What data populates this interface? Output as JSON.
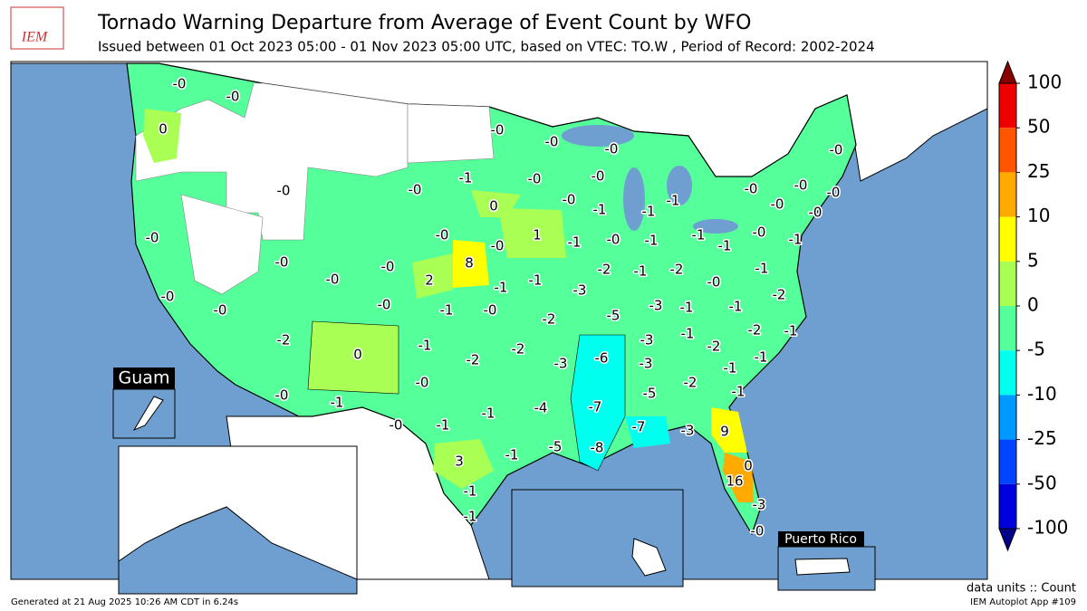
{
  "header": {
    "logo": "IEM",
    "title": "Tornado Warning Departure from Average of Event Count by WFO",
    "subtitle": "Issued between 01 Oct 2023 05:00 - 01 Nov 2023 05:00 UTC, based on VTEC: TO.W  , Period of Record: 2002-2024"
  },
  "map": {
    "labels": [
      "-0",
      "-0",
      "0",
      "-0",
      "-0",
      "-0",
      "-0",
      "-0",
      "-0",
      "-1",
      "-0",
      "-0",
      "-0",
      "-0",
      "-0",
      "0",
      "-0",
      "-1",
      "-1",
      "-1",
      "-0",
      "-0",
      "-0",
      "-0",
      "1",
      "-1",
      "-0",
      "-1",
      "-1",
      "-1",
      "-0",
      "-1",
      "8",
      "-0",
      "-0",
      "-0",
      "-0",
      "2",
      "-1",
      "-1",
      "-2",
      "-1",
      "-2",
      "-1",
      "-0",
      "-0",
      "-1",
      "-0",
      "-3",
      "-0",
      "-2",
      "-0",
      "-5",
      "-3",
      "-1",
      "-1",
      "-2",
      "-2",
      "-1",
      "-2",
      "-1",
      "-2",
      "-6",
      "-3",
      "-1",
      "-2",
      "0",
      "-2",
      "-3",
      "-3",
      "-1",
      "-1",
      "-0",
      "-2",
      "-5",
      "-1",
      "-0",
      "-1",
      "-1",
      "-4",
      "-7",
      "-7",
      "-3",
      "9",
      "-0",
      "-1",
      "-1",
      "-5",
      "-8",
      "0",
      "3",
      "16",
      "-3",
      "-1",
      "-1",
      "-0"
    ],
    "insets": [
      "Guam",
      "Puerto Rico"
    ]
  },
  "colorbar": {
    "ticks": [
      100,
      50,
      25,
      10,
      5,
      0,
      -5,
      -10,
      -25,
      -50,
      -100
    ],
    "colors": [
      "#ee0000",
      "#ff5500",
      "#ffaa00",
      "#ffff00",
      "#aaff55",
      "#55ff99",
      "#00ffee",
      "#0099ff",
      "#0044ff",
      "#0000dd"
    ],
    "over": "#880000",
    "under": "#000088",
    "units": "data units :: Count"
  },
  "footer": {
    "generated": "Generated at 21 Aug 2025 10:26 AM CDT in 6.24s",
    "app": "IEM Autoplot App #109"
  }
}
